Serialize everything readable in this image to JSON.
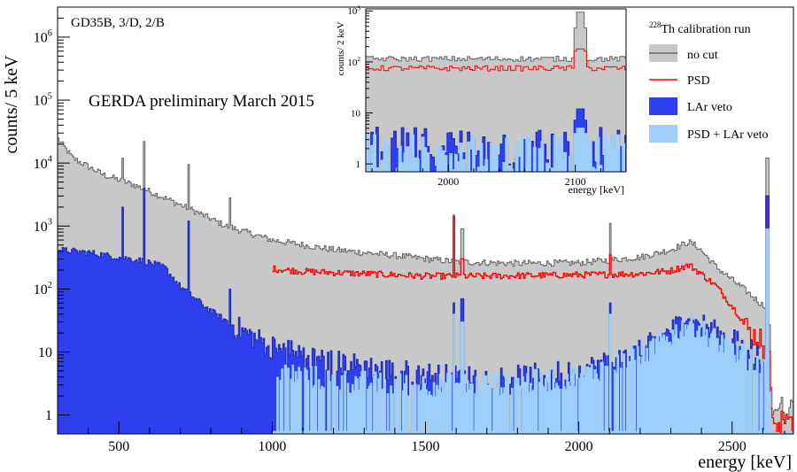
{
  "chart_data": {
    "type": "histogram",
    "title": "",
    "xlabel": "energy [keV]",
    "ylabel": "counts/ 5 keV",
    "xlim": [
      300,
      2700
    ],
    "ylim": [
      0.5,
      3000000
    ],
    "yscale": "log",
    "bin_width_keV": 5,
    "x_ticks": [
      500,
      1000,
      1500,
      2000,
      2500
    ],
    "y_ticks": [
      {
        "value": 1,
        "label": "1"
      },
      {
        "value": 10,
        "label": "10"
      },
      {
        "value": 100,
        "base": "10",
        "exp": "2"
      },
      {
        "value": 1000,
        "base": "10",
        "exp": "3"
      },
      {
        "value": 10000,
        "base": "10",
        "exp": "4"
      },
      {
        "value": 100000,
        "base": "10",
        "exp": "5"
      },
      {
        "value": 1000000,
        "base": "10",
        "exp": "6"
      }
    ],
    "annotations": {
      "dataset": "GD35B, 3/D, 2/B",
      "preliminary": "GERDA preliminary March 2015"
    },
    "legend": {
      "placement": "top-right",
      "title_sup": "228",
      "title_text": "Th calibration run",
      "entries": [
        {
          "key": "nocut",
          "label": "no cut"
        },
        {
          "key": "psd",
          "label": "PSD"
        },
        {
          "key": "larveto",
          "label": "LAr veto"
        },
        {
          "key": "psdlar",
          "label": "PSD + LAr veto"
        }
      ]
    },
    "colors": {
      "nocut_fill": "#c8c8c8",
      "nocut_line": "#646464",
      "psd_line": "#ff0000",
      "larveto_fill": "#2e3ff0",
      "larveto_line": "#1c28b4",
      "psdlar_fill": "#9dcffa"
    },
    "series": [
      {
        "name": "no cut",
        "key": "nocut",
        "continuum": [
          [
            300,
            25000
          ],
          [
            350,
            12000
          ],
          [
            450,
            6500
          ],
          [
            550,
            4500
          ],
          [
            650,
            2800
          ],
          [
            750,
            1700
          ],
          [
            850,
            1000
          ],
          [
            1000,
            600
          ],
          [
            1200,
            420
          ],
          [
            1400,
            340
          ],
          [
            1600,
            270
          ],
          [
            1800,
            255
          ],
          [
            2000,
            260
          ],
          [
            2200,
            320
          ],
          [
            2300,
            420
          ],
          [
            2360,
            560
          ],
          [
            2390,
            460
          ],
          [
            2450,
            220
          ],
          [
            2550,
            90
          ],
          [
            2600,
            55
          ],
          [
            2620,
            55
          ],
          [
            2630,
            1.3
          ],
          [
            2700,
            1.3
          ]
        ],
        "peaks": [
          [
            511,
            12000
          ],
          [
            583,
            22000
          ],
          [
            727,
            9500
          ],
          [
            861,
            2800
          ],
          [
            1593,
            1500
          ],
          [
            1620,
            900
          ],
          [
            2104,
            1100
          ],
          [
            2615,
            12000
          ]
        ]
      },
      {
        "name": "PSD",
        "key": "psd",
        "range": [
          1000,
          2700
        ],
        "continuum": [
          [
            1000,
            210
          ],
          [
            1100,
            190
          ],
          [
            1300,
            175
          ],
          [
            1500,
            160
          ],
          [
            1700,
            160
          ],
          [
            1900,
            165
          ],
          [
            2100,
            170
          ],
          [
            2200,
            175
          ],
          [
            2300,
            195
          ],
          [
            2360,
            240
          ],
          [
            2390,
            190
          ],
          [
            2450,
            110
          ],
          [
            2520,
            40
          ],
          [
            2560,
            20
          ],
          [
            2600,
            15
          ],
          [
            2620,
            15
          ],
          [
            2630,
            0.8
          ],
          [
            2700,
            0.8
          ]
        ],
        "peaks": [
          [
            1593,
            1400
          ],
          [
            1620,
            300
          ],
          [
            2104,
            350
          ],
          [
            2615,
            3000
          ]
        ]
      },
      {
        "name": "LAr veto",
        "key": "larveto",
        "continuum": [
          [
            300,
            420
          ],
          [
            400,
            380
          ],
          [
            500,
            320
          ],
          [
            580,
            280
          ],
          [
            650,
            220
          ],
          [
            700,
            110
          ],
          [
            800,
            45
          ],
          [
            900,
            22
          ],
          [
            1000,
            12
          ],
          [
            1200,
            7
          ],
          [
            1400,
            5
          ],
          [
            1600,
            4
          ],
          [
            1800,
            4
          ],
          [
            2000,
            5
          ],
          [
            2200,
            10
          ],
          [
            2300,
            22
          ],
          [
            2360,
            36
          ],
          [
            2450,
            20
          ],
          [
            2550,
            12
          ],
          [
            2600,
            8
          ],
          [
            2620,
            8
          ],
          [
            2630,
            0.3
          ],
          [
            2700,
            0.3
          ]
        ],
        "peaks": [
          [
            511,
            2000
          ],
          [
            583,
            4000
          ],
          [
            727,
            1200
          ],
          [
            861,
            100
          ],
          [
            1593,
            60
          ],
          [
            1620,
            70
          ],
          [
            2104,
            60
          ],
          [
            2615,
            3000
          ]
        ]
      },
      {
        "name": "PSD + LAr veto",
        "key": "psdlar",
        "range": [
          1000,
          2700
        ],
        "continuum": [
          [
            1000,
            5
          ],
          [
            1200,
            3.5
          ],
          [
            1400,
            3
          ],
          [
            1600,
            3
          ],
          [
            1800,
            3.2
          ],
          [
            2000,
            4
          ],
          [
            2200,
            9
          ],
          [
            2300,
            18
          ],
          [
            2360,
            30
          ],
          [
            2450,
            15
          ],
          [
            2550,
            8
          ],
          [
            2600,
            5
          ],
          [
            2620,
            5
          ],
          [
            2630,
            0.3
          ],
          [
            2700,
            0.3
          ]
        ],
        "peaks": [
          [
            1593,
            40
          ],
          [
            1620,
            30
          ],
          [
            2104,
            40
          ],
          [
            2615,
            900
          ]
        ]
      }
    ],
    "inset": {
      "xlabel": "energy [keV]",
      "ylabel": "counts/ 2 keV",
      "xlim": [
        1935,
        2140
      ],
      "ylim": [
        0.7,
        1100
      ],
      "yscale": "log",
      "bin_width_keV": 2,
      "x_ticks": [
        2000,
        2100
      ],
      "y_ticks": [
        {
          "value": 1,
          "label": "1"
        },
        {
          "value": 10,
          "label": "10"
        },
        {
          "value": 100,
          "base": "10",
          "exp": "2"
        },
        {
          "value": 1000,
          "base": "10",
          "exp": "3"
        }
      ],
      "series": [
        {
          "key": "nocut",
          "level": 115,
          "peak": [
            2104,
            950
          ]
        },
        {
          "key": "psd",
          "level": 75,
          "peak": [
            2104,
            180
          ]
        },
        {
          "key": "larveto",
          "level": 2.2,
          "peak": [
            2104,
            12
          ]
        },
        {
          "key": "psdlar",
          "level": 1.6,
          "peak": [
            2104,
            5
          ]
        }
      ]
    }
  }
}
